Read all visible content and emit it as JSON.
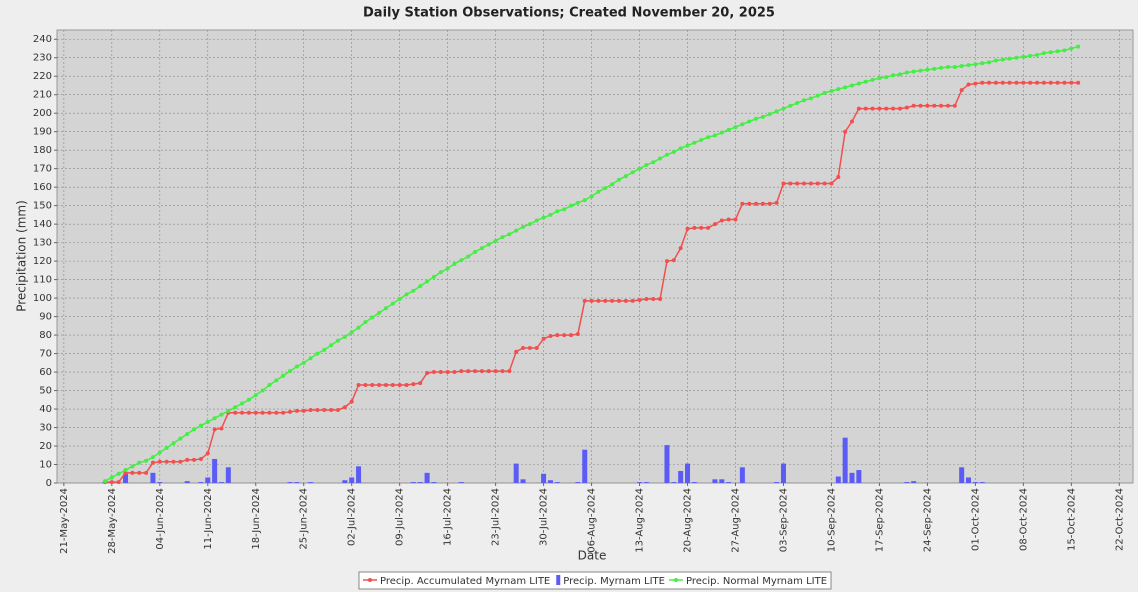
{
  "chart_data": {
    "type": "line",
    "title": "Daily Station Observations; Created November 20, 2025",
    "x_label": "Date",
    "y_label": "Precipitation (mm)",
    "xlim": [
      "2024-05-20",
      "2024-10-24"
    ],
    "xticks": [
      {
        "value": "2024-05-21",
        "label": "21-May-2024"
      },
      {
        "value": "2024-05-28",
        "label": "28-May-2024"
      },
      {
        "value": "2024-06-04",
        "label": "04-Jun-2024"
      },
      {
        "value": "2024-06-11",
        "label": "11-Jun-2024"
      },
      {
        "value": "2024-06-18",
        "label": "18-Jun-2024"
      },
      {
        "value": "2024-06-25",
        "label": "25-Jun-2024"
      },
      {
        "value": "2024-07-02",
        "label": "02-Jul-2024"
      },
      {
        "value": "2024-07-09",
        "label": "09-Jul-2024"
      },
      {
        "value": "2024-07-16",
        "label": "16-Jul-2024"
      },
      {
        "value": "2024-07-23",
        "label": "23-Jul-2024"
      },
      {
        "value": "2024-07-30",
        "label": "30-Jul-2024"
      },
      {
        "value": "2024-08-06",
        "label": "06-Aug-2024"
      },
      {
        "value": "2024-08-13",
        "label": "13-Aug-2024"
      },
      {
        "value": "2024-08-20",
        "label": "20-Aug-2024"
      },
      {
        "value": "2024-08-27",
        "label": "27-Aug-2024"
      },
      {
        "value": "2024-09-03",
        "label": "03-Sep-2024"
      },
      {
        "value": "2024-09-10",
        "label": "10-Sep-2024"
      },
      {
        "value": "2024-09-17",
        "label": "17-Sep-2024"
      },
      {
        "value": "2024-09-24",
        "label": "24-Sep-2024"
      },
      {
        "value": "2024-10-01",
        "label": "01-Oct-2024"
      },
      {
        "value": "2024-10-08",
        "label": "08-Oct-2024"
      },
      {
        "value": "2024-10-15",
        "label": "15-Oct-2024"
      },
      {
        "value": "2024-10-22",
        "label": "22-Oct-2024"
      }
    ],
    "ylim": [
      0,
      245
    ],
    "yticks": [
      0,
      10,
      20,
      30,
      40,
      50,
      60,
      70,
      80,
      90,
      100,
      110,
      120,
      130,
      140,
      150,
      160,
      170,
      180,
      190,
      200,
      210,
      220,
      230,
      240
    ],
    "grid": true,
    "legend": "bottom",
    "x": [
      "2024-05-27",
      "2024-05-28",
      "2024-05-29",
      "2024-05-30",
      "2024-05-31",
      "2024-06-01",
      "2024-06-02",
      "2024-06-03",
      "2024-06-04",
      "2024-06-05",
      "2024-06-06",
      "2024-06-07",
      "2024-06-08",
      "2024-06-09",
      "2024-06-10",
      "2024-06-11",
      "2024-06-12",
      "2024-06-13",
      "2024-06-14",
      "2024-06-15",
      "2024-06-16",
      "2024-06-17",
      "2024-06-18",
      "2024-06-19",
      "2024-06-20",
      "2024-06-21",
      "2024-06-22",
      "2024-06-23",
      "2024-06-24",
      "2024-06-25",
      "2024-06-26",
      "2024-06-27",
      "2024-06-28",
      "2024-06-29",
      "2024-06-30",
      "2024-07-01",
      "2024-07-02",
      "2024-07-03",
      "2024-07-04",
      "2024-07-05",
      "2024-07-06",
      "2024-07-07",
      "2024-07-08",
      "2024-07-09",
      "2024-07-10",
      "2024-07-11",
      "2024-07-12",
      "2024-07-13",
      "2024-07-14",
      "2024-07-15",
      "2024-07-16",
      "2024-07-17",
      "2024-07-18",
      "2024-07-19",
      "2024-07-20",
      "2024-07-21",
      "2024-07-22",
      "2024-07-23",
      "2024-07-24",
      "2024-07-25",
      "2024-07-26",
      "2024-07-27",
      "2024-07-28",
      "2024-07-29",
      "2024-07-30",
      "2024-07-31",
      "2024-08-01",
      "2024-08-02",
      "2024-08-03",
      "2024-08-04",
      "2024-08-05",
      "2024-08-06",
      "2024-08-07",
      "2024-08-08",
      "2024-08-09",
      "2024-08-10",
      "2024-08-11",
      "2024-08-12",
      "2024-08-13",
      "2024-08-14",
      "2024-08-15",
      "2024-08-16",
      "2024-08-17",
      "2024-08-18",
      "2024-08-19",
      "2024-08-20",
      "2024-08-21",
      "2024-08-22",
      "2024-08-23",
      "2024-08-24",
      "2024-08-25",
      "2024-08-26",
      "2024-08-27",
      "2024-08-28",
      "2024-08-29",
      "2024-08-30",
      "2024-08-31",
      "2024-09-01",
      "2024-09-02",
      "2024-09-03",
      "2024-09-04",
      "2024-09-05",
      "2024-09-06",
      "2024-09-07",
      "2024-09-08",
      "2024-09-09",
      "2024-09-10",
      "2024-09-11",
      "2024-09-12",
      "2024-09-13",
      "2024-09-14",
      "2024-09-15",
      "2024-09-16",
      "2024-09-17",
      "2024-09-18",
      "2024-09-19",
      "2024-09-20",
      "2024-09-21",
      "2024-09-22",
      "2024-09-23",
      "2024-09-24",
      "2024-09-25",
      "2024-09-26",
      "2024-09-27",
      "2024-09-28",
      "2024-09-29",
      "2024-09-30",
      "2024-10-01",
      "2024-10-02",
      "2024-10-03",
      "2024-10-04",
      "2024-10-05",
      "2024-10-06",
      "2024-10-07",
      "2024-10-08",
      "2024-10-09",
      "2024-10-10",
      "2024-10-11",
      "2024-10-12",
      "2024-10-13",
      "2024-10-14",
      "2024-10-15",
      "2024-10-16"
    ],
    "series": [
      {
        "name": "Precip. Accumulated Myrnam LITE",
        "type": "line",
        "color": "#f05050",
        "values": [
          0.5,
          0.5,
          0.5,
          5.5,
          5.5,
          5.5,
          5.5,
          11,
          11.5,
          11.5,
          11.5,
          11.5,
          12.5,
          12.5,
          13,
          16,
          29,
          29.5,
          38,
          38,
          38,
          38,
          38,
          38,
          38,
          38,
          38,
          38.5,
          39,
          39,
          39.5,
          39.5,
          39.5,
          39.5,
          39.5,
          41,
          44,
          53,
          53,
          53,
          53,
          53,
          53,
          53,
          53,
          53.5,
          54,
          59.5,
          60,
          60,
          60,
          60,
          60.5,
          60.5,
          60.5,
          60.5,
          60.5,
          60.5,
          60.5,
          60.5,
          71,
          73,
          73,
          73,
          78,
          79.5,
          80,
          80,
          80,
          80.5,
          98.5,
          98.5,
          98.5,
          98.5,
          98.5,
          98.5,
          98.5,
          98.5,
          99,
          99.5,
          99.5,
          99.5,
          120,
          120.5,
          127,
          137.5,
          138,
          138,
          138,
          140,
          142,
          142.5,
          142.5,
          151,
          151,
          151,
          151,
          151,
          151.5,
          162,
          162,
          162,
          162,
          162,
          162,
          162,
          162,
          165.5,
          190,
          195.5,
          202.5,
          202.5,
          202.5,
          202.5,
          202.5,
          202.5,
          202.5,
          203,
          204,
          204,
          204,
          204,
          204,
          204,
          204,
          212.5,
          215.5,
          216,
          216.5,
          216.5,
          216.5,
          216.5,
          216.5,
          216.5,
          216.5,
          216.5,
          216.5,
          216.5,
          216.5,
          216.5,
          216.5,
          216.5,
          216.5
        ]
      },
      {
        "name": "Precip. Myrnam LITE",
        "type": "bar",
        "color": "#5b5bf5",
        "values": [
          0.5,
          0,
          0,
          5,
          0,
          0,
          0,
          5.5,
          0.5,
          0,
          0,
          0,
          1,
          0,
          0.5,
          3,
          13,
          0.5,
          8.5,
          0,
          0,
          0,
          0,
          0,
          0,
          0,
          0,
          0.5,
          0.5,
          0,
          0.5,
          0,
          0,
          0,
          0,
          1.5,
          3,
          9,
          0,
          0,
          0,
          0,
          0,
          0,
          0,
          0.5,
          0.5,
          5.5,
          0.5,
          0,
          0,
          0,
          0.5,
          0,
          0,
          0,
          0,
          0,
          0,
          0,
          10.5,
          2,
          0,
          0,
          5,
          1.5,
          0.5,
          0,
          0,
          0.5,
          18,
          0,
          0,
          0,
          0,
          0,
          0,
          0,
          0.5,
          0.5,
          0,
          0,
          20.5,
          0.5,
          6.5,
          10.5,
          0.5,
          0,
          0,
          2,
          2,
          0.5,
          0,
          8.5,
          0,
          0,
          0,
          0,
          0.5,
          10.5,
          0,
          0,
          0,
          0,
          0,
          0,
          0,
          3.5,
          24.5,
          5.5,
          7,
          0,
          0,
          0,
          0,
          0,
          0,
          0.5,
          1,
          0,
          0,
          0,
          0,
          0,
          0,
          8.5,
          3,
          0.5,
          0.5,
          0,
          0,
          0,
          0,
          0,
          0,
          0,
          0,
          0,
          0,
          0,
          0,
          0,
          0
        ]
      },
      {
        "name": "Precip. Normal Myrnam LITE",
        "type": "line",
        "color": "#44ee44",
        "values": [
          1,
          3,
          5,
          7,
          9,
          11,
          12,
          14,
          16.5,
          19,
          21.5,
          24,
          26.5,
          29,
          31,
          33,
          35,
          37,
          39,
          41,
          43,
          45,
          47.5,
          50,
          53,
          55.5,
          58,
          60.5,
          63,
          65,
          67.5,
          70,
          72,
          74.5,
          77,
          79,
          81.5,
          84,
          87,
          89.5,
          92,
          94.5,
          97,
          99.5,
          102,
          104,
          106.5,
          109,
          111.5,
          114,
          116,
          118.5,
          120.5,
          122.5,
          125,
          127,
          129,
          131,
          133,
          134.5,
          136.5,
          138.5,
          140,
          142,
          143.5,
          145,
          147,
          148,
          150,
          151.5,
          153,
          155,
          157.5,
          159.5,
          161.5,
          164,
          166,
          168,
          170,
          172,
          173.5,
          175.5,
          177.5,
          179,
          181,
          182.5,
          184,
          185.5,
          187,
          188,
          189.5,
          191,
          192.5,
          194,
          195.5,
          197,
          198,
          199.5,
          201,
          202.5,
          204,
          205.5,
          207,
          208,
          209.5,
          211,
          212,
          213,
          214,
          215,
          216,
          217,
          218,
          219,
          219.5,
          220.5,
          221,
          222,
          222.5,
          223,
          223.5,
          224,
          224.5,
          225,
          225,
          225.5,
          226,
          226.5,
          227,
          227.5,
          228.5,
          229,
          229.5,
          230,
          230.5,
          231,
          231.5,
          232.5,
          233,
          233.5,
          234,
          235,
          236
        ]
      }
    ]
  }
}
